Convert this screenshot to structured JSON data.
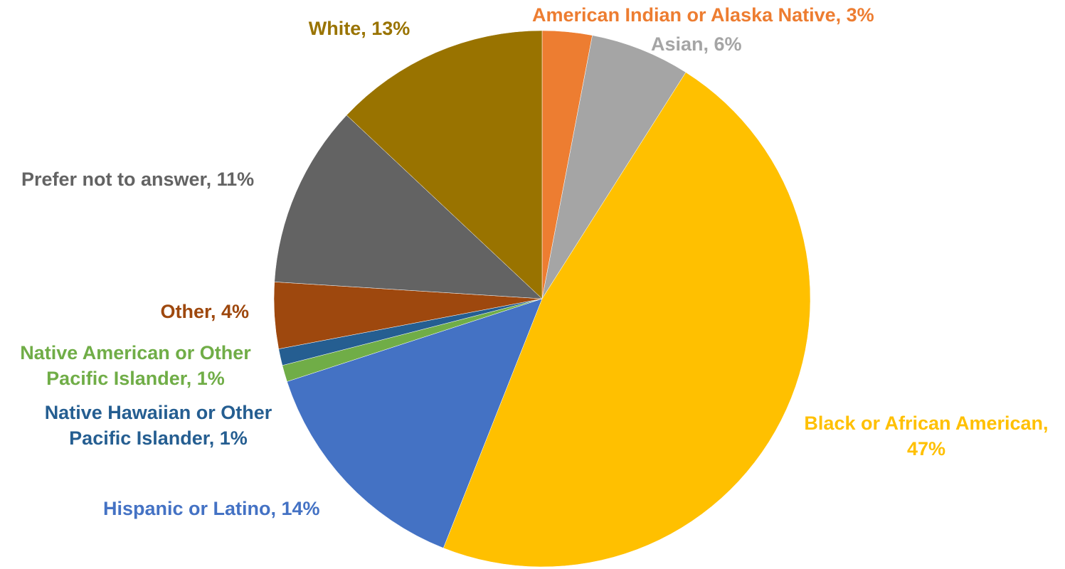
{
  "chart_data": {
    "type": "pie",
    "start_angle_deg": 0,
    "direction": "clockwise",
    "grid": false,
    "legend": "none",
    "slices": [
      {
        "name": "American Indian or Alaska Native",
        "value": 3,
        "color": "#ED7D31",
        "label_lines": [
          "American Indian or Alaska Native, 3%"
        ]
      },
      {
        "name": "Asian",
        "value": 6,
        "color": "#A5A5A5",
        "label_lines": [
          "Asian, 6%"
        ]
      },
      {
        "name": "Black or African American",
        "value": 47,
        "color": "#FFC000",
        "label_lines": [
          "Black or African American,",
          "47%"
        ]
      },
      {
        "name": "Hispanic or Latino",
        "value": 14,
        "color": "#4472C4",
        "label_lines": [
          "Hispanic or Latino, 14%"
        ]
      },
      {
        "name": "Native American or Other Pacific Islander",
        "value": 1,
        "color": "#70AD47",
        "label_lines": [
          "Native American or Other",
          "Pacific Islander, 1%"
        ]
      },
      {
        "name": "Native Hawaiian or Other Pacific Islander",
        "value": 1,
        "color": "#255E91",
        "label_lines": [
          "Native Hawaiian or Other",
          "Pacific Islander, 1%"
        ]
      },
      {
        "name": "Other",
        "value": 4,
        "color": "#9E480E",
        "label_lines": [
          "Other, 4%"
        ]
      },
      {
        "name": "Prefer not to answer",
        "value": 11,
        "color": "#636363",
        "label_lines": [
          "Prefer not to answer, 11%"
        ]
      },
      {
        "name": "White",
        "value": 13,
        "color": "#997300",
        "label_lines": [
          "White, 13%"
        ]
      }
    ]
  }
}
